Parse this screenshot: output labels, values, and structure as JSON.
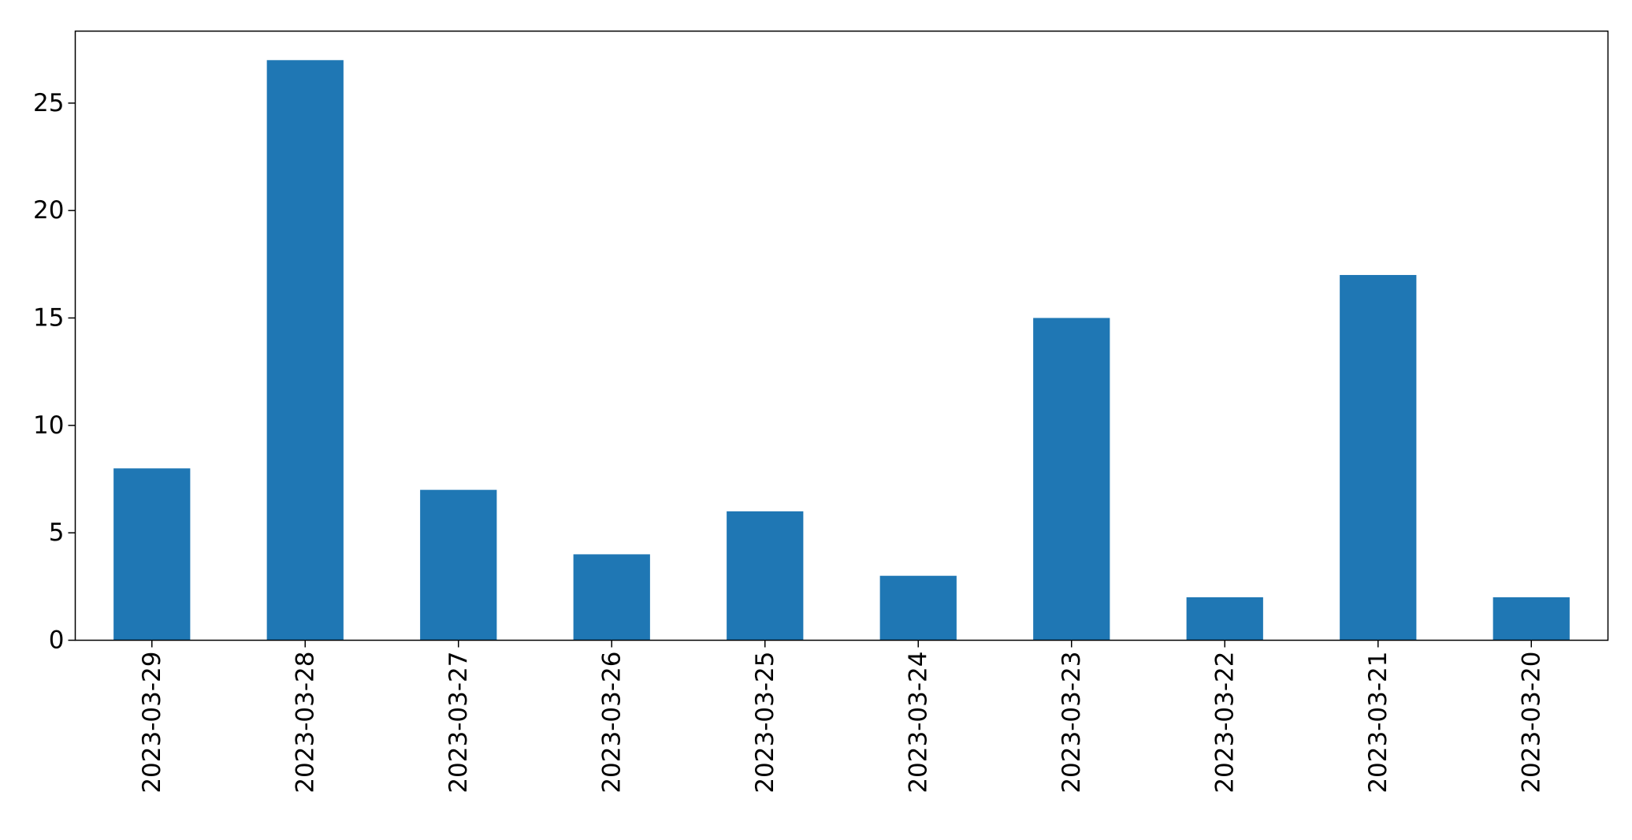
{
  "chart_data": {
    "type": "bar",
    "categories": [
      "2023-03-29",
      "2023-03-28",
      "2023-03-27",
      "2023-03-26",
      "2023-03-25",
      "2023-03-24",
      "2023-03-23",
      "2023-03-22",
      "2023-03-21",
      "2023-03-20"
    ],
    "values": [
      8,
      27,
      7,
      4,
      6,
      3,
      15,
      2,
      17,
      2
    ],
    "yticks": [
      "0",
      "5",
      "10",
      "15",
      "20",
      "25"
    ],
    "ylim": [
      0,
      28.35
    ],
    "grid": false,
    "legend": "none",
    "title": "",
    "xlabel": "",
    "ylabel": "",
    "bar_color": "#1f77b4"
  }
}
